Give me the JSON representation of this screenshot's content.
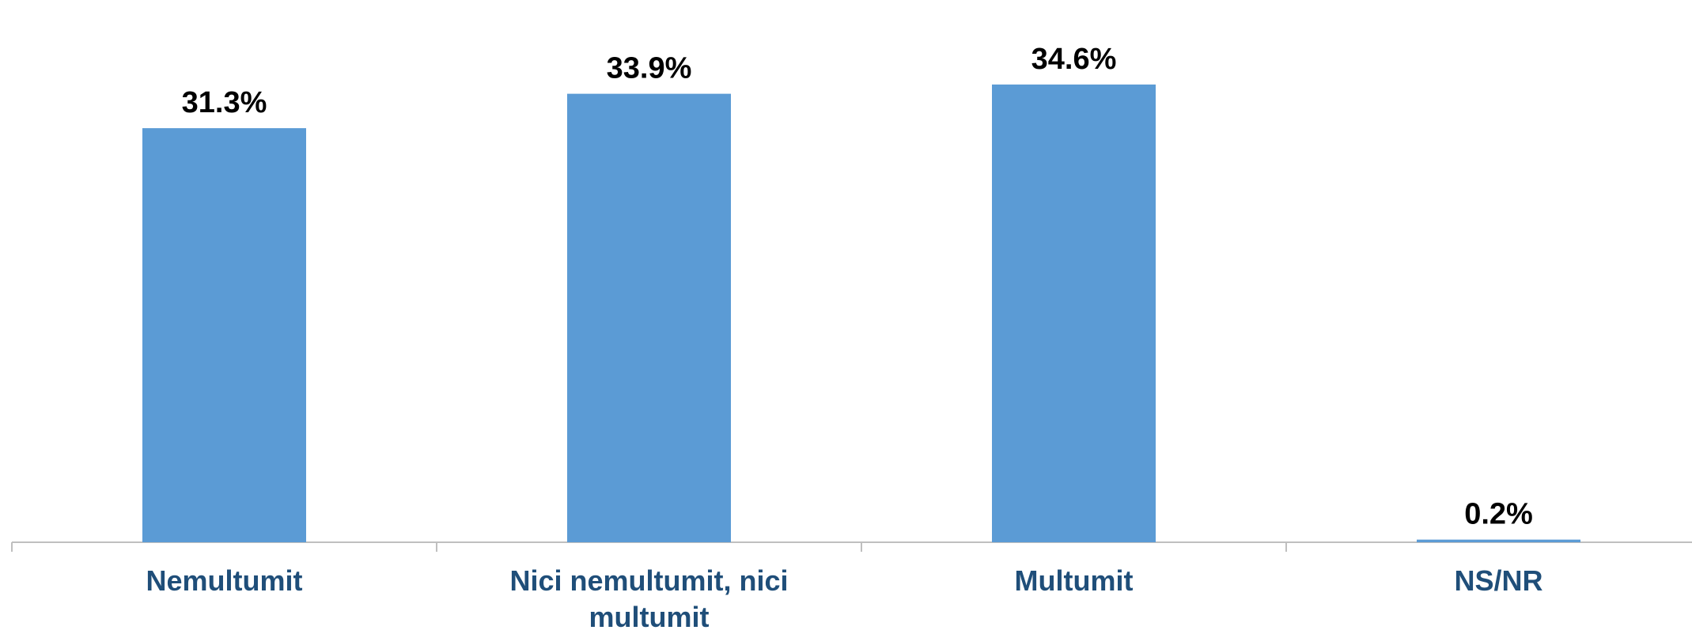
{
  "chart_data": {
    "type": "bar",
    "categories": [
      [
        "Nemultumit"
      ],
      [
        "Nici nemultumit, nici",
        "multumit"
      ],
      [
        "Multumit"
      ],
      [
        "NS/NR"
      ]
    ],
    "values": [
      31.3,
      33.9,
      34.6,
      0.2
    ],
    "value_labels": [
      "31.3%",
      "33.9%",
      "34.6%",
      "0.2%"
    ],
    "title": "",
    "xlabel": "",
    "ylabel": "",
    "ylim": [
      0,
      38
    ],
    "grid": false,
    "legend": "none",
    "colors": {
      "bar": "#5B9BD5",
      "axis": "#BFBFBF",
      "category_text": "#1F4E79",
      "value_text": "#000000"
    }
  }
}
